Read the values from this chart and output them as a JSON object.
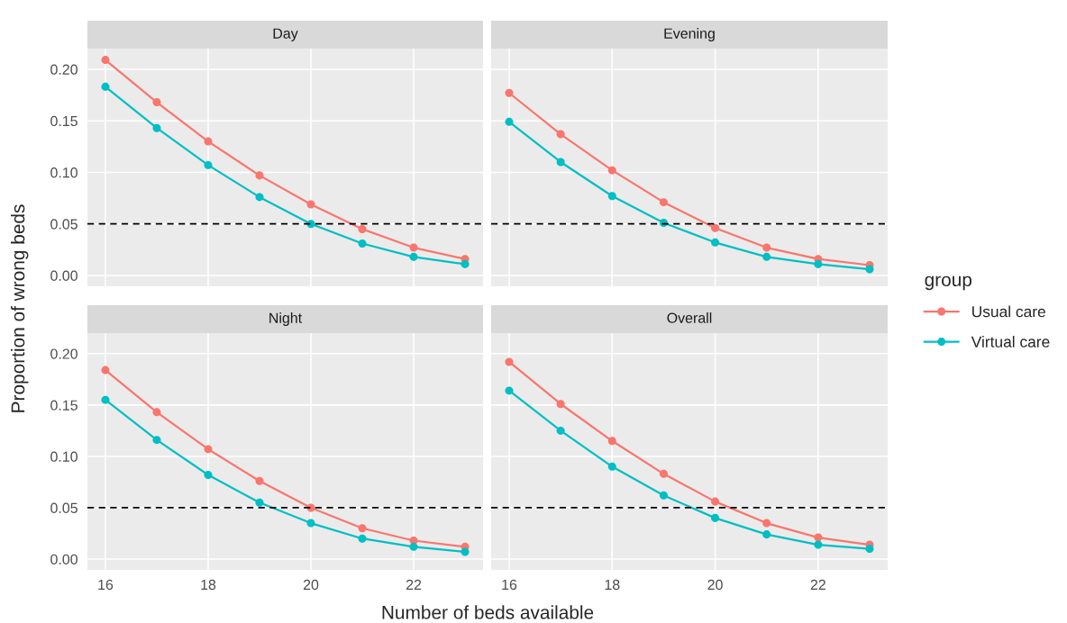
{
  "chart_data": [
    {
      "type": "line",
      "title": "Day",
      "ylabel": "Proportion of wrong beds",
      "legend_title": "group",
      "legend": "right",
      "x": [
        16,
        17,
        18,
        19,
        20,
        21,
        22,
        23
      ],
      "xlim": [
        15.65,
        23.35
      ],
      "xticks": [
        16,
        18,
        20,
        22
      ],
      "ylim": [
        -0.0105,
        0.22
      ],
      "yticks": [
        {
          "value": 0,
          "label": "0.00"
        },
        {
          "value": 0.05,
          "label": "0.05"
        },
        {
          "value": 0.1,
          "label": "0.10"
        },
        {
          "value": 0.15,
          "label": "0.15"
        },
        {
          "value": 0.2,
          "label": "0.20"
        }
      ],
      "tick_labels": "y",
      "grid": true,
      "marker": "circle",
      "line_style": "solid",
      "series": [
        {
          "name": "Usual care",
          "color": "#f8766d",
          "values": [
            0.209,
            0.168,
            0.13,
            0.097,
            0.069,
            0.045,
            0.027,
            0.016
          ]
        },
        {
          "name": "Virtual care",
          "color": "#00bfc4",
          "values": [
            0.183,
            0.143,
            0.107,
            0.076,
            0.05,
            0.031,
            0.018,
            0.011
          ]
        }
      ],
      "ref_lines": [
        {
          "axis": "y",
          "value": 0.05,
          "color": "#000000",
          "line_style": "dashed"
        }
      ]
    },
    {
      "type": "line",
      "title": "Evening",
      "x": [
        16,
        17,
        18,
        19,
        20,
        21,
        22,
        23
      ],
      "xlim": [
        15.65,
        23.35
      ],
      "xticks": [
        16,
        18,
        20,
        22
      ],
      "ylim": [
        -0.0105,
        0.22
      ],
      "yticks": [
        0,
        0.05,
        0.1,
        0.15,
        0.2
      ],
      "tick_labels": false,
      "grid": true,
      "marker": "circle",
      "line_style": "solid",
      "series": [
        {
          "color": "#f8766d",
          "values": [
            0.177,
            0.137,
            0.102,
            0.071,
            0.046,
            0.027,
            0.016,
            0.01
          ]
        },
        {
          "color": "#00bfc4",
          "values": [
            0.149,
            0.11,
            0.077,
            0.051,
            0.032,
            0.018,
            0.011,
            0.006
          ]
        }
      ],
      "ref_lines": [
        {
          "axis": "y",
          "value": 0.05,
          "color": "#000000",
          "line_style": "dashed"
        }
      ]
    },
    {
      "type": "line",
      "title": "Night",
      "xlabel": "Number of beds available",
      "x": [
        16,
        17,
        18,
        19,
        20,
        21,
        22,
        23
      ],
      "xlim": [
        15.65,
        23.35
      ],
      "xticks": [
        16,
        18,
        20,
        22
      ],
      "ylim": [
        -0.0105,
        0.22
      ],
      "yticks": [
        {
          "value": 0,
          "label": "0.00"
        },
        {
          "value": 0.05,
          "label": "0.05"
        },
        {
          "value": 0.1,
          "label": "0.10"
        },
        {
          "value": 0.15,
          "label": "0.15"
        },
        {
          "value": 0.2,
          "label": "0.20"
        }
      ],
      "grid": true,
      "marker": "circle",
      "line_style": "solid",
      "series": [
        {
          "color": "#f8766d",
          "values": [
            0.184,
            0.143,
            0.107,
            0.076,
            0.05,
            0.03,
            0.018,
            0.012
          ]
        },
        {
          "color": "#00bfc4",
          "values": [
            0.155,
            0.116,
            0.082,
            0.055,
            0.035,
            0.02,
            0.012,
            0.007
          ]
        }
      ],
      "ref_lines": [
        {
          "axis": "y",
          "value": 0.05,
          "color": "#000000",
          "line_style": "dashed"
        }
      ]
    },
    {
      "type": "line",
      "title": "Overall",
      "x": [
        16,
        17,
        18,
        19,
        20,
        21,
        22,
        23
      ],
      "xlim": [
        15.65,
        23.35
      ],
      "xticks": [
        16,
        18,
        20,
        22
      ],
      "ylim": [
        -0.0105,
        0.22
      ],
      "yticks": [
        0,
        0.05,
        0.1,
        0.15,
        0.2
      ],
      "tick_labels": "x",
      "grid": true,
      "marker": "circle",
      "line_style": "solid",
      "series": [
        {
          "color": "#f8766d",
          "values": [
            0.192,
            0.151,
            0.115,
            0.083,
            0.056,
            0.035,
            0.021,
            0.014
          ]
        },
        {
          "color": "#00bfc4",
          "values": [
            0.164,
            0.125,
            0.09,
            0.062,
            0.04,
            0.024,
            0.014,
            0.01
          ]
        }
      ],
      "ref_lines": [
        {
          "axis": "y",
          "value": 0.05,
          "color": "#000000",
          "line_style": "dashed"
        }
      ]
    }
  ]
}
